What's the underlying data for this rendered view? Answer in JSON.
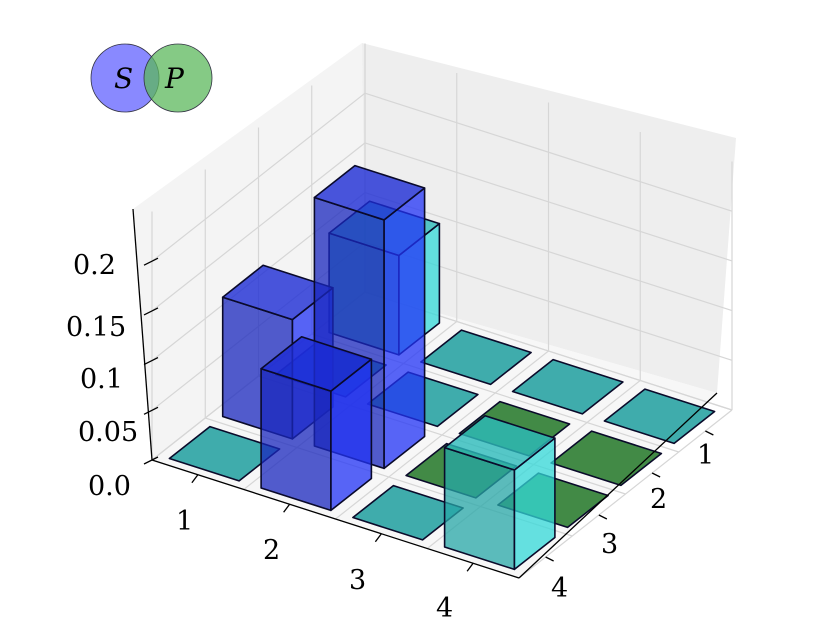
{
  "chart_data": {
    "type": "bar3d",
    "title": "",
    "x_categories": [
      "1",
      "2",
      "3",
      "4"
    ],
    "y_categories": [
      "1",
      "2",
      "3",
      "4"
    ],
    "z_ticks": [
      "0.0",
      "0.05",
      "0.1",
      "0.15",
      "0.2"
    ],
    "z_tick_values": [
      0.0,
      0.05,
      0.1,
      0.15,
      0.2
    ],
    "zlim": [
      0,
      0.25
    ],
    "grid": true,
    "bars": [
      {
        "x": 1,
        "y": 1,
        "z": 0.1,
        "color": "#2ec4c4"
      },
      {
        "x": 2,
        "y": 1,
        "z": 0.0,
        "color": "#2aa3a3"
      },
      {
        "x": 3,
        "y": 1,
        "z": 0.0,
        "color": "#2aa3a3"
      },
      {
        "x": 4,
        "y": 1,
        "z": 0.0,
        "color": "#2aa3a3"
      },
      {
        "x": 1,
        "y": 2,
        "z": 0.0,
        "color": "#2aa3a3"
      },
      {
        "x": 2,
        "y": 2,
        "z": 0.0,
        "color": "#2aa3a3"
      },
      {
        "x": 3,
        "y": 2,
        "z": 0.0,
        "color": "#2e7d32"
      },
      {
        "x": 4,
        "y": 2,
        "z": 0.0,
        "color": "#2e7d32"
      },
      {
        "x": 1,
        "y": 3,
        "z": 0.12,
        "color": "#1f2ee0"
      },
      {
        "x": 2,
        "y": 3,
        "z": 0.25,
        "color": "#1f2ee0"
      },
      {
        "x": 3,
        "y": 3,
        "z": 0.0,
        "color": "#2e7d32"
      },
      {
        "x": 4,
        "y": 3,
        "z": 0.0,
        "color": "#2e7d32"
      },
      {
        "x": 1,
        "y": 4,
        "z": 0.0,
        "color": "#2aa3a3"
      },
      {
        "x": 2,
        "y": 4,
        "z": 0.12,
        "color": "#1f2ee0"
      },
      {
        "x": 3,
        "y": 4,
        "z": 0.0,
        "color": "#2aa3a3"
      },
      {
        "x": 4,
        "y": 4,
        "z": 0.1,
        "color": "#2ec4c4"
      }
    ]
  },
  "legend": {
    "left_letter": "S",
    "right_letter": "P",
    "left_color": "#6b6bff",
    "right_color": "#5cb85c"
  }
}
